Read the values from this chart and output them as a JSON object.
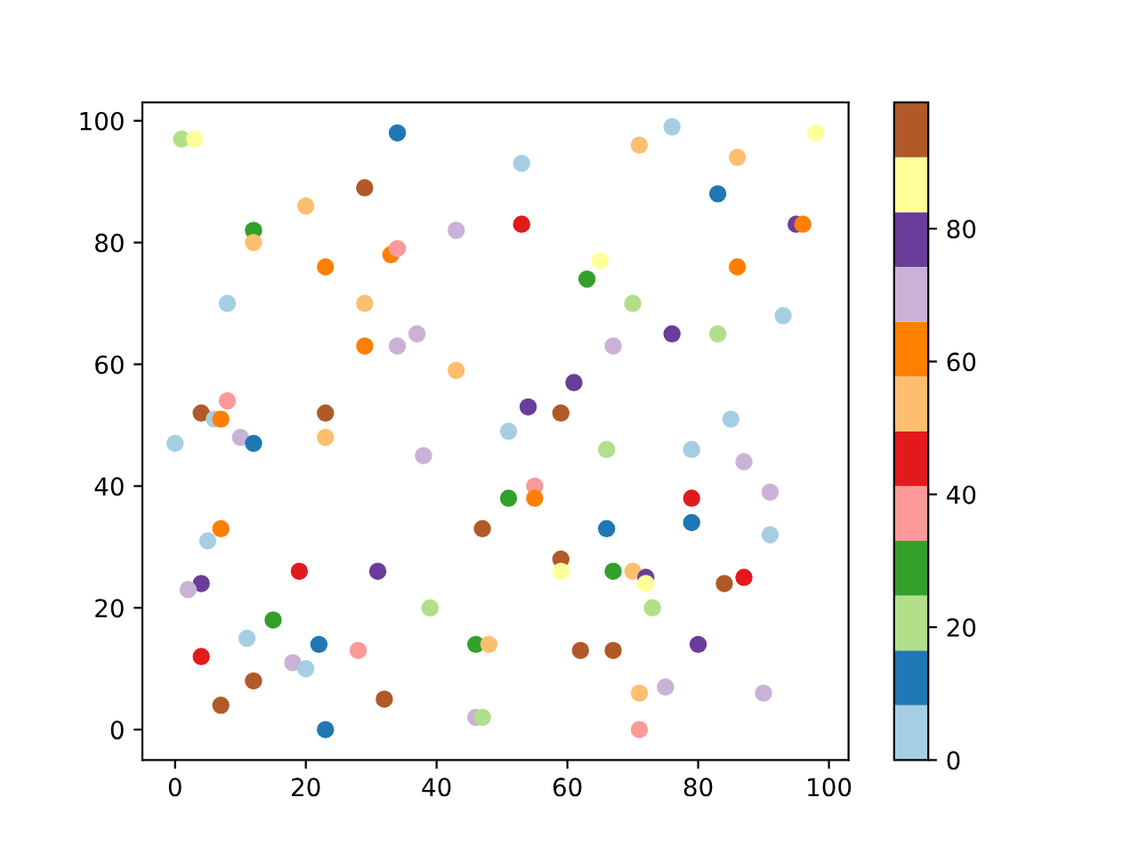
{
  "chart_data": {
    "type": "scatter",
    "marker": "circle",
    "xlim": [
      -5,
      103
    ],
    "ylim": [
      -5,
      103
    ],
    "xticks": [
      0,
      20,
      40,
      60,
      80,
      100
    ],
    "yticks": [
      0,
      20,
      40,
      60,
      80,
      100
    ],
    "clim": [
      0,
      99
    ],
    "cticks": [
      0,
      20,
      40,
      60,
      80
    ],
    "x": [
      1,
      3,
      34,
      53,
      76,
      98,
      71,
      86,
      29,
      20,
      83,
      12,
      12,
      43,
      53,
      95,
      96,
      23,
      33,
      34,
      86,
      63,
      65,
      8,
      29,
      70,
      93,
      37,
      34,
      29,
      76,
      83,
      67,
      43,
      61,
      54,
      59,
      85,
      8,
      4,
      6,
      7,
      23,
      0,
      10,
      12,
      23,
      51,
      66,
      79,
      87,
      38,
      55,
      51,
      55,
      91,
      79,
      5,
      7,
      47,
      66,
      79,
      91,
      59,
      59,
      67,
      70,
      72,
      72,
      84,
      87,
      73,
      4,
      2,
      19,
      31,
      39,
      15,
      11,
      4,
      22,
      28,
      46,
      48,
      18,
      20,
      12,
      7,
      32,
      62,
      67,
      80,
      46,
      47,
      23,
      71,
      75,
      90,
      71
    ],
    "values": [
      97,
      97,
      98,
      93,
      99,
      98,
      96,
      94,
      89,
      86,
      88,
      82,
      80,
      82,
      83,
      83,
      83,
      76,
      78,
      79,
      76,
      74,
      77,
      70,
      70,
      70,
      68,
      65,
      63,
      63,
      65,
      65,
      63,
      59,
      57,
      53,
      52,
      51,
      54,
      52,
      51,
      51,
      52,
      47,
      48,
      47,
      48,
      49,
      46,
      46,
      44,
      45,
      40,
      38,
      38,
      39,
      38,
      31,
      33,
      33,
      33,
      34,
      32,
      28,
      26,
      26,
      26,
      25,
      24,
      24,
      25,
      20,
      24,
      23,
      26,
      26,
      20,
      18,
      15,
      12,
      14,
      13,
      14,
      14,
      11,
      10,
      8,
      4,
      5,
      13,
      13,
      14,
      2,
      2,
      0,
      6,
      7,
      6,
      0
    ],
    "cvalues": [
      21,
      86,
      12,
      4,
      4,
      86,
      53,
      53,
      95,
      53,
      12,
      29,
      53,
      70,
      45,
      78,
      62,
      62,
      62,
      37,
      62,
      29,
      86,
      4,
      53,
      21,
      4,
      70,
      70,
      62,
      78,
      21,
      70,
      53,
      78,
      78,
      95,
      4,
      37,
      95,
      4,
      62,
      95,
      4,
      70,
      12,
      53,
      4,
      21,
      4,
      70,
      70,
      37,
      29,
      62,
      70,
      45,
      4,
      62,
      95,
      12,
      12,
      4,
      95,
      86,
      29,
      53,
      78,
      86,
      95,
      45,
      21,
      78,
      70,
      45,
      78,
      21,
      29,
      4,
      45,
      12,
      37,
      29,
      53,
      70,
      4,
      95,
      95,
      95,
      95,
      95,
      78,
      70,
      21,
      12,
      53,
      70,
      70,
      37
    ]
  }
}
